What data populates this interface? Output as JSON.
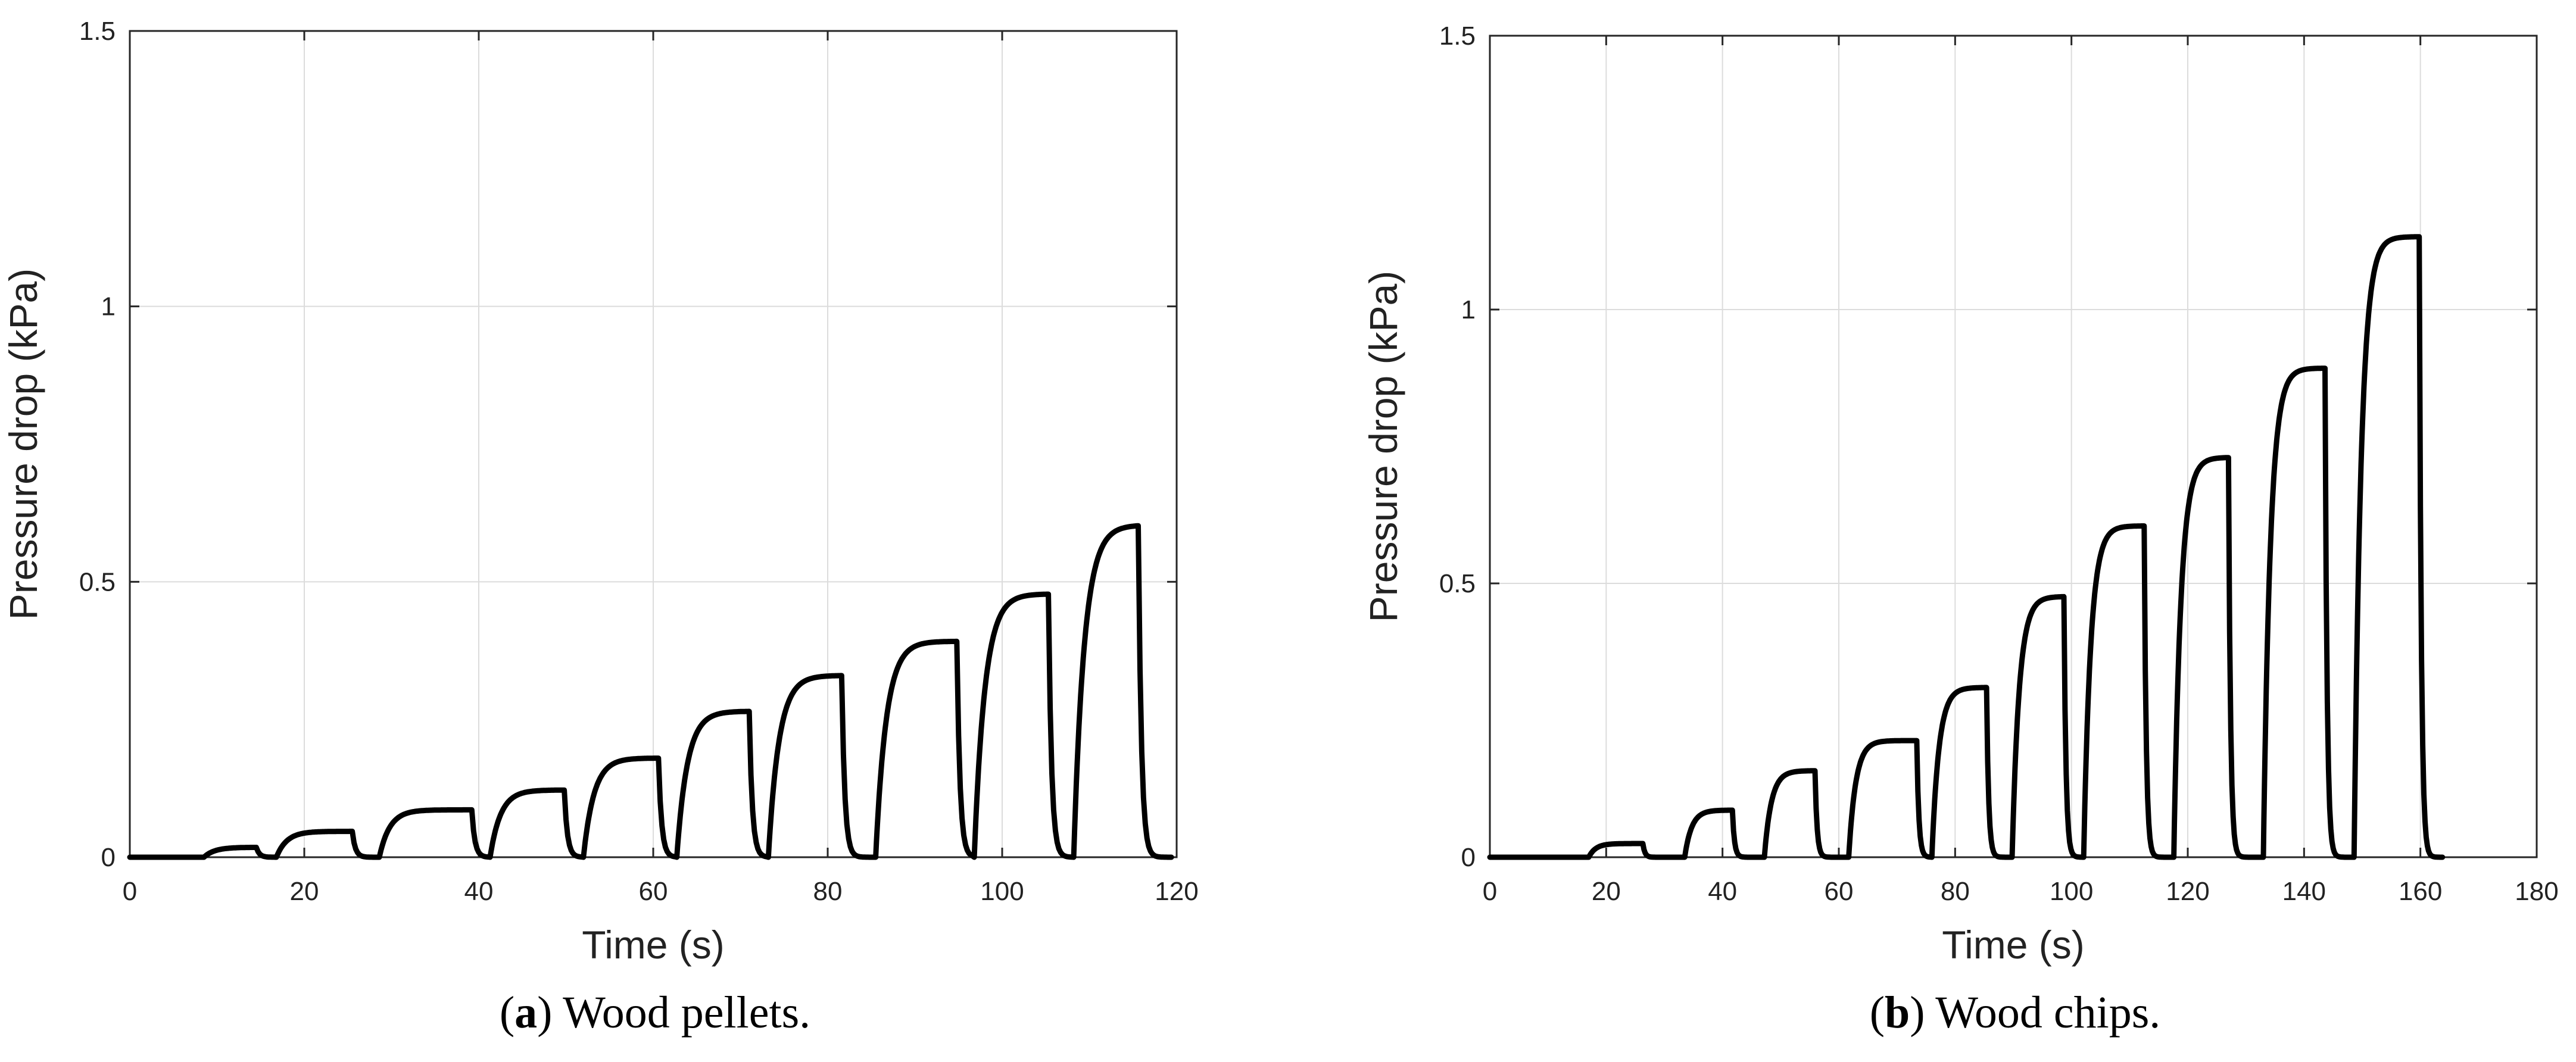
{
  "chart_data": [
    {
      "type": "line",
      "panel": "a",
      "caption": {
        "letter": "a",
        "text": ") Wood pellets.",
        "open": "("
      },
      "xlabel": "Time (s)",
      "ylabel": "Pressure drop (kPa)",
      "xlim": [
        0,
        120
      ],
      "ylim": [
        0,
        1.5
      ],
      "xticks": [
        0,
        20,
        40,
        60,
        80,
        100,
        120
      ],
      "yticks": [
        0,
        0.5,
        1,
        1.5
      ],
      "ytick_labels": [
        "0",
        "0.5",
        "1",
        "1.5"
      ],
      "grid": true,
      "series": [
        {
          "color": "#000000",
          "steps": [
            {
              "start": 8.5,
              "end": 14.5,
              "peak": 0.018
            },
            {
              "start": 16.8,
              "end": 25.5,
              "peak": 0.047
            },
            {
              "start": 28.6,
              "end": 39.2,
              "peak": 0.086
            },
            {
              "start": 41.3,
              "end": 49.8,
              "peak": 0.122
            },
            {
              "start": 52.0,
              "end": 60.6,
              "peak": 0.18
            },
            {
              "start": 62.7,
              "end": 71.0,
              "peak": 0.265
            },
            {
              "start": 73.2,
              "end": 81.6,
              "peak": 0.33
            },
            {
              "start": 85.5,
              "end": 94.8,
              "peak": 0.392
            },
            {
              "start": 96.8,
              "end": 105.3,
              "peak": 0.478
            },
            {
              "start": 108.2,
              "end": 115.6,
              "peak": 0.603
            }
          ]
        }
      ]
    },
    {
      "type": "line",
      "panel": "b",
      "caption": {
        "letter": "b",
        "text": ") Wood chips.",
        "open": "("
      },
      "xlabel": "Time (s)",
      "ylabel": "Pressure drop (kPa)",
      "xlim": [
        0,
        180
      ],
      "ylim": [
        0,
        1.5
      ],
      "xticks": [
        0,
        20,
        40,
        60,
        80,
        100,
        120,
        140,
        160,
        180
      ],
      "yticks": [
        0,
        0.5,
        1,
        1.5
      ],
      "ytick_labels": [
        "0",
        "0.5",
        "1",
        "1.5"
      ],
      "grid": true,
      "series": [
        {
          "color": "#000000",
          "steps": [
            {
              "start": 17.0,
              "end": 26.3,
              "peak": 0.025
            },
            {
              "start": 33.5,
              "end": 41.7,
              "peak": 0.086
            },
            {
              "start": 47.2,
              "end": 55.9,
              "peak": 0.158
            },
            {
              "start": 61.7,
              "end": 73.4,
              "peak": 0.213
            },
            {
              "start": 76.0,
              "end": 85.4,
              "peak": 0.31
            },
            {
              "start": 89.8,
              "end": 98.7,
              "peak": 0.476
            },
            {
              "start": 102.1,
              "end": 112.5,
              "peak": 0.605
            },
            {
              "start": 117.6,
              "end": 127.0,
              "peak": 0.73
            },
            {
              "start": 133.0,
              "end": 143.6,
              "peak": 0.893
            },
            {
              "start": 148.6,
              "end": 159.8,
              "peak": 1.133
            }
          ]
        }
      ]
    }
  ]
}
